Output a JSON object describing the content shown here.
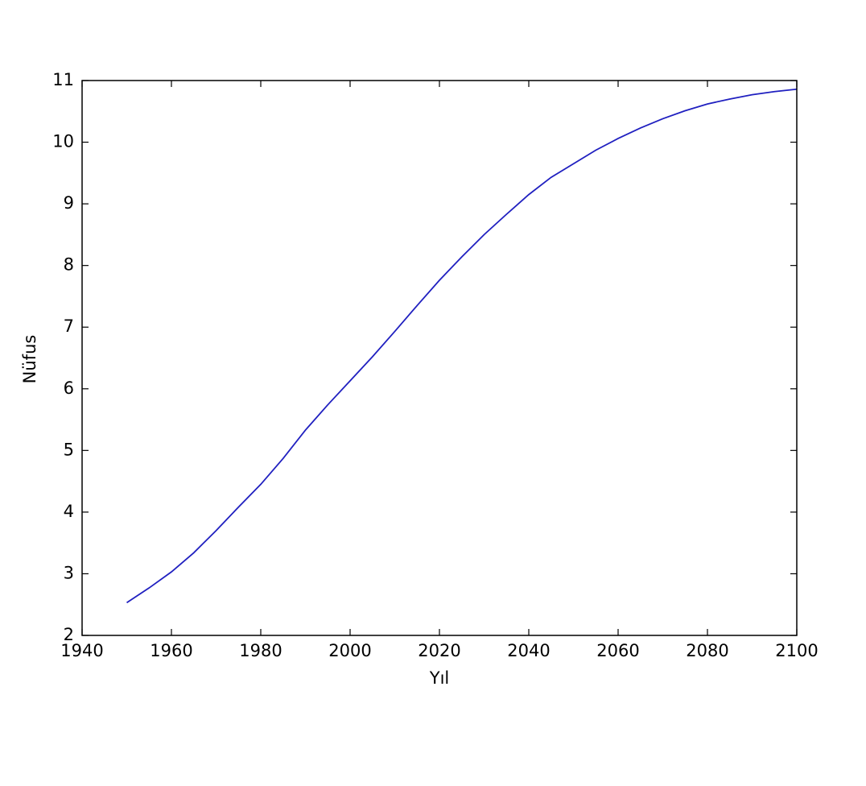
{
  "chart_data": {
    "type": "line",
    "x_label": "Yıl",
    "y_label": "Nüfus",
    "x": [
      1950,
      1955,
      1960,
      1965,
      1970,
      1975,
      1980,
      1985,
      1990,
      1995,
      2000,
      2005,
      2010,
      2015,
      2020,
      2025,
      2030,
      2035,
      2040,
      2045,
      2050,
      2055,
      2060,
      2065,
      2070,
      2075,
      2080,
      2085,
      2090,
      2095,
      2100
    ],
    "series": [
      {
        "color": "#2020c0",
        "values": [
          2.53,
          2.77,
          3.03,
          3.34,
          3.7,
          4.08,
          4.45,
          4.87,
          5.33,
          5.74,
          6.13,
          6.52,
          6.93,
          7.35,
          7.76,
          8.14,
          8.5,
          8.83,
          9.15,
          9.43,
          9.65,
          9.87,
          10.06,
          10.23,
          10.38,
          10.51,
          10.62,
          10.7,
          10.77,
          10.82,
          10.86
        ]
      }
    ],
    "xlim": [
      1940,
      2100
    ],
    "xticks": [
      1940,
      1960,
      1980,
      2000,
      2020,
      2040,
      2060,
      2080,
      2100
    ],
    "ylim": [
      2,
      11
    ],
    "yticks": [
      2,
      3,
      4,
      5,
      6,
      7,
      8,
      9,
      10,
      11
    ],
    "grid": false
  }
}
